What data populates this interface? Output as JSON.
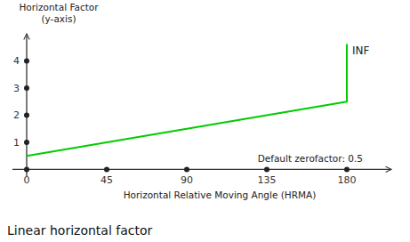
{
  "chart_data": {
    "type": "line",
    "title": "Linear horizontal factor",
    "xlabel": "Horizontal Relative Moving Angle (HRMA)",
    "ylabel": "Horizontal Factor\n(y-axis)",
    "annotations": [
      {
        "text": "Default zerofactor: 0.5"
      },
      {
        "text": "INF"
      }
    ],
    "x": [
      0,
      180,
      180
    ],
    "series": [
      {
        "name": "Horizontal factor",
        "color": "#00cc00",
        "values": [
          0.5,
          2.5,
          4.6
        ]
      }
    ],
    "xlim": [
      -8,
      205
    ],
    "ylim": [
      -0.25,
      5.0
    ],
    "xticks": [
      0,
      45,
      90,
      135,
      180
    ],
    "yticks": [
      1,
      2,
      3,
      4
    ],
    "grid": false
  }
}
